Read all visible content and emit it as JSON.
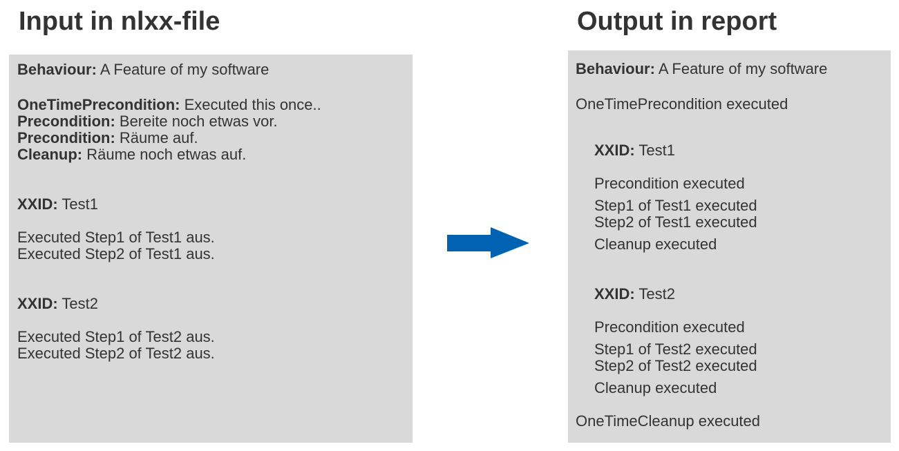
{
  "headings": {
    "left": "Input in nlxx-file",
    "right": "Output in report"
  },
  "input": {
    "behaviour_label": "Behaviour:",
    "behaviour_value": " A Feature of my software",
    "one_time_precondition_label": "OneTimePrecondition:",
    "one_time_precondition_value": " Executed this once..",
    "precondition1_label": "Precondition:",
    "precondition1_value": " Bereite noch etwas vor.",
    "precondition2_label": "Precondition:",
    "precondition2_value": " Räume auf.",
    "cleanup_label": "Cleanup:",
    "cleanup_value": " Räume noch etwas auf.",
    "tests": [
      {
        "xxid_label": "XXID:",
        "xxid_value": " Test1",
        "steps": [
          "Executed Step1 of Test1 aus.",
          "Executed Step2 of Test1 aus."
        ]
      },
      {
        "xxid_label": "XXID:",
        "xxid_value": " Test2",
        "steps": [
          "Executed Step1 of Test2 aus.",
          "Executed Step2 of Test2 aus."
        ]
      }
    ]
  },
  "output": {
    "behaviour_label": "Behaviour:",
    "behaviour_value": " A Feature of my software",
    "one_time_precondition": "OneTimePrecondition executed",
    "tests": [
      {
        "xxid_label": "XXID:",
        "xxid_value": " Test1",
        "precondition": "Precondition executed",
        "steps": [
          "Step1 of Test1 executed",
          "Step2 of Test1 executed"
        ],
        "cleanup": "Cleanup executed"
      },
      {
        "xxid_label": "XXID:",
        "xxid_value": " Test2",
        "precondition": "Precondition executed",
        "steps": [
          "Step1 of Test2 executed",
          "Step2 of Test2 executed"
        ],
        "cleanup": "Cleanup executed"
      }
    ],
    "one_time_cleanup": "OneTimeCleanup executed"
  },
  "colors": {
    "text": "#333333",
    "panel": "#d9d9d9",
    "arrow": "#0062b0"
  }
}
